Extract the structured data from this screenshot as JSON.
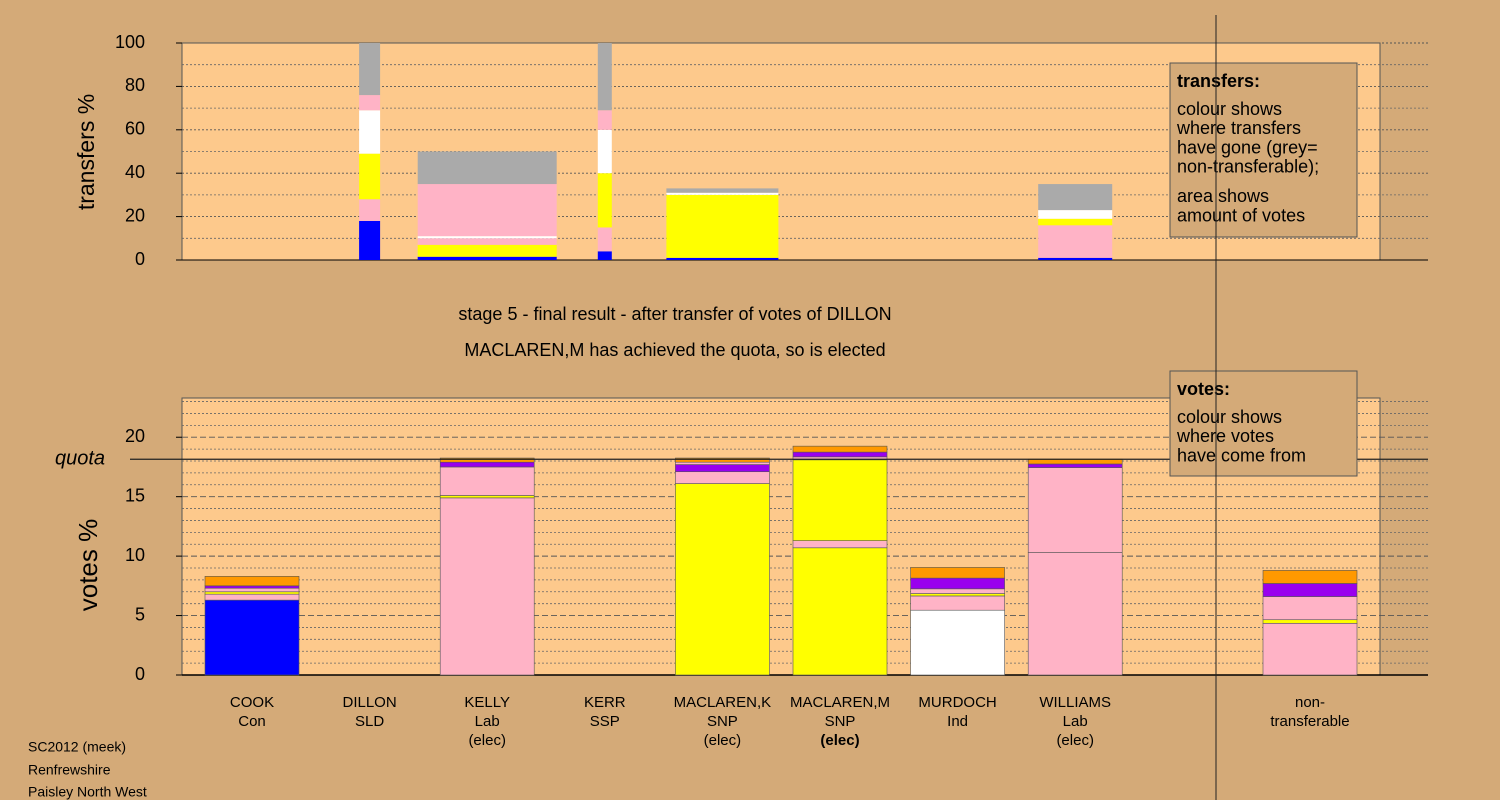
{
  "chart_data": [
    {
      "type": "stacked-bar",
      "ylabel": "transfers %",
      "ylim": [
        0,
        100
      ],
      "yticks": [
        0,
        20,
        40,
        60,
        80,
        100
      ],
      "minor_yticks": [
        10,
        30,
        50,
        70,
        90
      ],
      "legend": {
        "title": "transfers:",
        "paragraphs": [
          [
            "colour shows",
            "where transfers",
            "have gone (grey=",
            "non-transferable);"
          ],
          [
            "area shows",
            "amount of votes"
          ]
        ]
      },
      "bars": [
        null,
        {
          "amount": 21,
          "segments": [
            {
              "color": "#0000ff",
              "value": 18
            },
            {
              "color": "#ffb3c6",
              "value": 10
            },
            {
              "color": "#ffff00",
              "value": 21
            },
            {
              "color": "#ffffff",
              "value": 20
            },
            {
              "color": "#ffb3c6",
              "value": 7
            },
            {
              "color": "#aaaaaa",
              "value": 24
            }
          ]
        },
        {
          "amount": 139,
          "segments": [
            {
              "color": "#0000ff",
              "value": 1.5
            },
            {
              "color": "#ffff00",
              "value": 5.5
            },
            {
              "color": "#ffb3c6",
              "value": 3
            },
            {
              "color": "#ffffff",
              "value": 1
            },
            {
              "color": "#ffb3c6",
              "value": 24
            },
            {
              "color": "#aaaaaa",
              "value": 15
            }
          ]
        },
        {
          "amount": 14,
          "segments": [
            {
              "color": "#0000ff",
              "value": 4
            },
            {
              "color": "#ffb3c6",
              "value": 11
            },
            {
              "color": "#ffff00",
              "value": 25
            },
            {
              "color": "#ffffff",
              "value": 20
            },
            {
              "color": "#ffb3c6",
              "value": 9
            },
            {
              "color": "#aaaaaa",
              "value": 31
            }
          ]
        },
        {
          "amount": 112,
          "segments": [
            {
              "color": "#0000ff",
              "value": 1
            },
            {
              "color": "#ffff00",
              "value": 29
            },
            {
              "color": "#ffffff",
              "value": 1
            },
            {
              "color": "#aaaaaa",
              "value": 2
            }
          ]
        },
        null,
        null,
        {
          "amount": 74,
          "segments": [
            {
              "color": "#0000ff",
              "value": 1
            },
            {
              "color": "#ffb3c6",
              "value": 15
            },
            {
              "color": "#ffff00",
              "value": 3
            },
            {
              "color": "#ffffff",
              "value": 4
            },
            {
              "color": "#aaaaaa",
              "value": 12
            }
          ]
        },
        null
      ]
    },
    {
      "type": "stacked-bar",
      "ylabel": "votes %",
      "title": "stage 5 - final result - after transfer of votes of DILLON",
      "subtitle": "MACLAREN,M has achieved the quota, so is elected",
      "ylim": [
        0,
        23.3
      ],
      "yticks": [
        0,
        5,
        10,
        15,
        20
      ],
      "minor_yticks": [
        1,
        2,
        3,
        4,
        6,
        7,
        8,
        9,
        11,
        12,
        13,
        14,
        16,
        17,
        18,
        19,
        21,
        22,
        23
      ],
      "quota": {
        "label": "quota",
        "value": 18.15
      },
      "legend": {
        "title": "votes:",
        "paragraphs": [
          [
            "colour shows",
            "where votes",
            "have come from"
          ]
        ]
      },
      "categories": [
        {
          "name": "COOK",
          "party": "Con"
        },
        {
          "name": "DILLON",
          "party": "SLD"
        },
        {
          "name": "KELLY",
          "party": "Lab",
          "status": "(elec)"
        },
        {
          "name": "KERR",
          "party": "SSP"
        },
        {
          "name": "MACLAREN,K",
          "party": "SNP",
          "status": "(elec)"
        },
        {
          "name": "MACLAREN,M",
          "party": "SNP",
          "status": "(elec)",
          "current": true
        },
        {
          "name": "MURDOCH",
          "party": "Ind"
        },
        {
          "name": "WILLIAMS",
          "party": "Lab",
          "status": "(elec)"
        },
        {
          "name": "non-",
          "party": "transferable"
        }
      ],
      "bars": [
        {
          "segments": [
            {
              "color": "#0000ff",
              "value": 6.3
            },
            {
              "color": "#ffb3c6",
              "value": 0.5
            },
            {
              "color": "#ffff00",
              "value": 0.2
            },
            {
              "color": "#ffb3c6",
              "value": 0.3
            },
            {
              "color": "#9900ee",
              "value": 0.2
            },
            {
              "color": "#ff9900",
              "value": 0.8
            }
          ]
        },
        {
          "segments": []
        },
        {
          "segments": [
            {
              "color": "#ffb3c6",
              "value": 14.9
            },
            {
              "color": "#ffff00",
              "value": 0.2
            },
            {
              "color": "#ffb3c6",
              "value": 2.4
            },
            {
              "color": "#9900ee",
              "value": 0.4
            },
            {
              "color": "#ff9900",
              "value": 0.35
            }
          ]
        },
        {
          "segments": []
        },
        {
          "segments": [
            {
              "color": "#ffff00",
              "value": 16.1
            },
            {
              "color": "#ffb3c6",
              "value": 1
            },
            {
              "color": "#9900ee",
              "value": 0.6
            },
            {
              "color": "#ffb3c6",
              "value": 0.2
            },
            {
              "color": "#ff9900",
              "value": 0.35
            }
          ]
        },
        {
          "segments": [
            {
              "color": "#ffff00",
              "value": 10.7
            },
            {
              "color": "#ffb3c6",
              "value": 0.6
            },
            {
              "color": "#ffff00",
              "value": 6.8
            },
            {
              "color": "#ffb3c6",
              "value": 0.25
            },
            {
              "color": "#9900ee",
              "value": 0.4
            },
            {
              "color": "#ff9900",
              "value": 0.5
            }
          ]
        },
        {
          "segments": [
            {
              "color": "#ffffff",
              "value": 5.45
            },
            {
              "color": "#ffb3c6",
              "value": 1.2
            },
            {
              "color": "#ffff00",
              "value": 0.2
            },
            {
              "color": "#ffb3c6",
              "value": 0.4
            },
            {
              "color": "#9900ee",
              "value": 0.9
            },
            {
              "color": "#ff9900",
              "value": 0.9
            }
          ]
        },
        {
          "segments": [
            {
              "color": "#ffb3c6",
              "value": 10.3
            },
            {
              "color": "#ffb3c6",
              "value": 7.15
            },
            {
              "color": "#9900ee",
              "value": 0.3
            },
            {
              "color": "#ff9900",
              "value": 0.4
            }
          ]
        },
        {
          "segments": [
            {
              "color": "#ffb3c6",
              "value": 4.35
            },
            {
              "color": "#ffff00",
              "value": 0.3
            },
            {
              "color": "#ffb3c6",
              "value": 1.95
            },
            {
              "color": "#9900ee",
              "value": 1.1
            },
            {
              "color": "#ff9900",
              "value": 1.1
            }
          ]
        }
      ]
    }
  ],
  "footer": [
    "SC2012 (meek)",
    "Renfrewshire",
    "Paisley North West"
  ]
}
